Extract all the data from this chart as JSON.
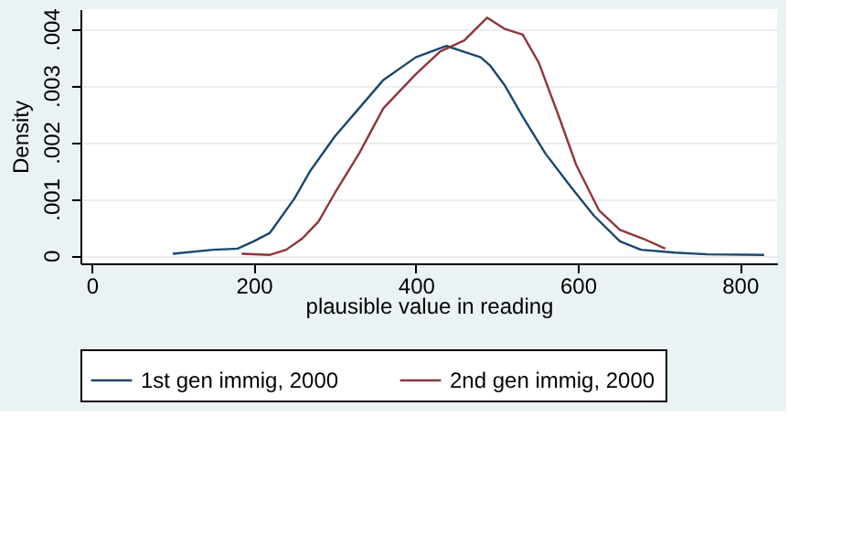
{
  "chart_data": {
    "type": "line",
    "xlabel": "plausible value in reading",
    "ylabel": "Density",
    "xlim": [
      -14,
      846
    ],
    "ylim": [
      -0.00014,
      0.00435
    ],
    "xticks": [
      0,
      200,
      400,
      600,
      800
    ],
    "yticks": [
      {
        "value": 0,
        "label": "0"
      },
      {
        "value": 0.001,
        "label": ".001"
      },
      {
        "value": 0.002,
        "label": ".002"
      },
      {
        "value": 0.003,
        "label": ".003"
      },
      {
        "value": 0.004,
        "label": ".004"
      }
    ],
    "grid": "y",
    "legend": "bottom",
    "marker": "none",
    "line_style": "solid",
    "series": [
      {
        "name": "1st gen immig, 2000",
        "color": "#1a476f",
        "x": [
          100,
          150,
          180,
          200,
          220,
          250,
          270,
          300,
          330,
          360,
          400,
          438,
          480,
          492,
          510,
          532,
          560,
          592,
          620,
          652,
          678,
          720,
          760,
          830
        ],
        "values": [
          3e-05,
          0.0001,
          0.00012,
          0.00025,
          0.0004,
          0.001,
          0.0015,
          0.0021,
          0.0026,
          0.0031,
          0.0035,
          0.0037,
          0.0035,
          0.00335,
          0.003,
          0.00245,
          0.0018,
          0.0012,
          0.0007,
          0.00025,
          0.0001,
          5e-05,
          2e-05,
          1e-05
        ]
      },
      {
        "name": "2nd gen immig, 2000",
        "color": "#90353b",
        "x": [
          185,
          220,
          240,
          260,
          280,
          300,
          330,
          360,
          400,
          430,
          460,
          488,
          510,
          532,
          552,
          578,
          598,
          626,
          652,
          680,
          708
        ],
        "values": [
          3e-05,
          1e-05,
          0.0001,
          0.0003,
          0.0006,
          0.0011,
          0.0018,
          0.0026,
          0.0032,
          0.0036,
          0.0038,
          0.0042,
          0.004,
          0.0039,
          0.0034,
          0.0024,
          0.0016,
          0.0008,
          0.00045,
          0.0003,
          0.00012
        ]
      }
    ]
  }
}
